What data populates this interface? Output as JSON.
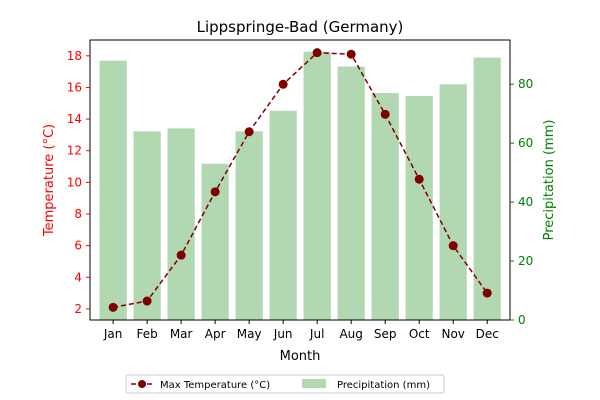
{
  "chart_data": {
    "type": "bar",
    "title": "Lippspringe-Bad (Germany)",
    "xlabel": "Month",
    "categories": [
      "Jan",
      "Feb",
      "Mar",
      "Apr",
      "May",
      "Jun",
      "Jul",
      "Aug",
      "Sep",
      "Oct",
      "Nov",
      "Dec"
    ],
    "grid": false,
    "legend_placement": "bottom-center",
    "series": [
      {
        "name": "Max Temperature (°C)",
        "type": "line",
        "axis": "left",
        "color": "#800000",
        "line_style": "dashed",
        "marker": "circle",
        "values": [
          2.1,
          2.5,
          5.4,
          9.4,
          13.2,
          16.2,
          18.2,
          18.1,
          14.3,
          10.2,
          6.0,
          3.0
        ]
      },
      {
        "name": "Precipitation (mm)",
        "type": "bar",
        "axis": "right",
        "color": "#b2d8b2",
        "values": [
          88,
          64,
          65,
          53,
          64,
          71,
          91,
          86,
          77,
          76,
          80,
          89
        ]
      }
    ],
    "left_axis": {
      "label": "Temperature (°C)",
      "color": "#ff0000",
      "ylim": [
        1.3,
        19.0
      ],
      "ticks": [
        2,
        4,
        6,
        8,
        10,
        12,
        14,
        16,
        18
      ]
    },
    "right_axis": {
      "label": "Precipitation (mm)",
      "color": "#008000",
      "ylim": [
        0,
        95
      ],
      "ticks": [
        0,
        20,
        40,
        60,
        80
      ]
    }
  }
}
